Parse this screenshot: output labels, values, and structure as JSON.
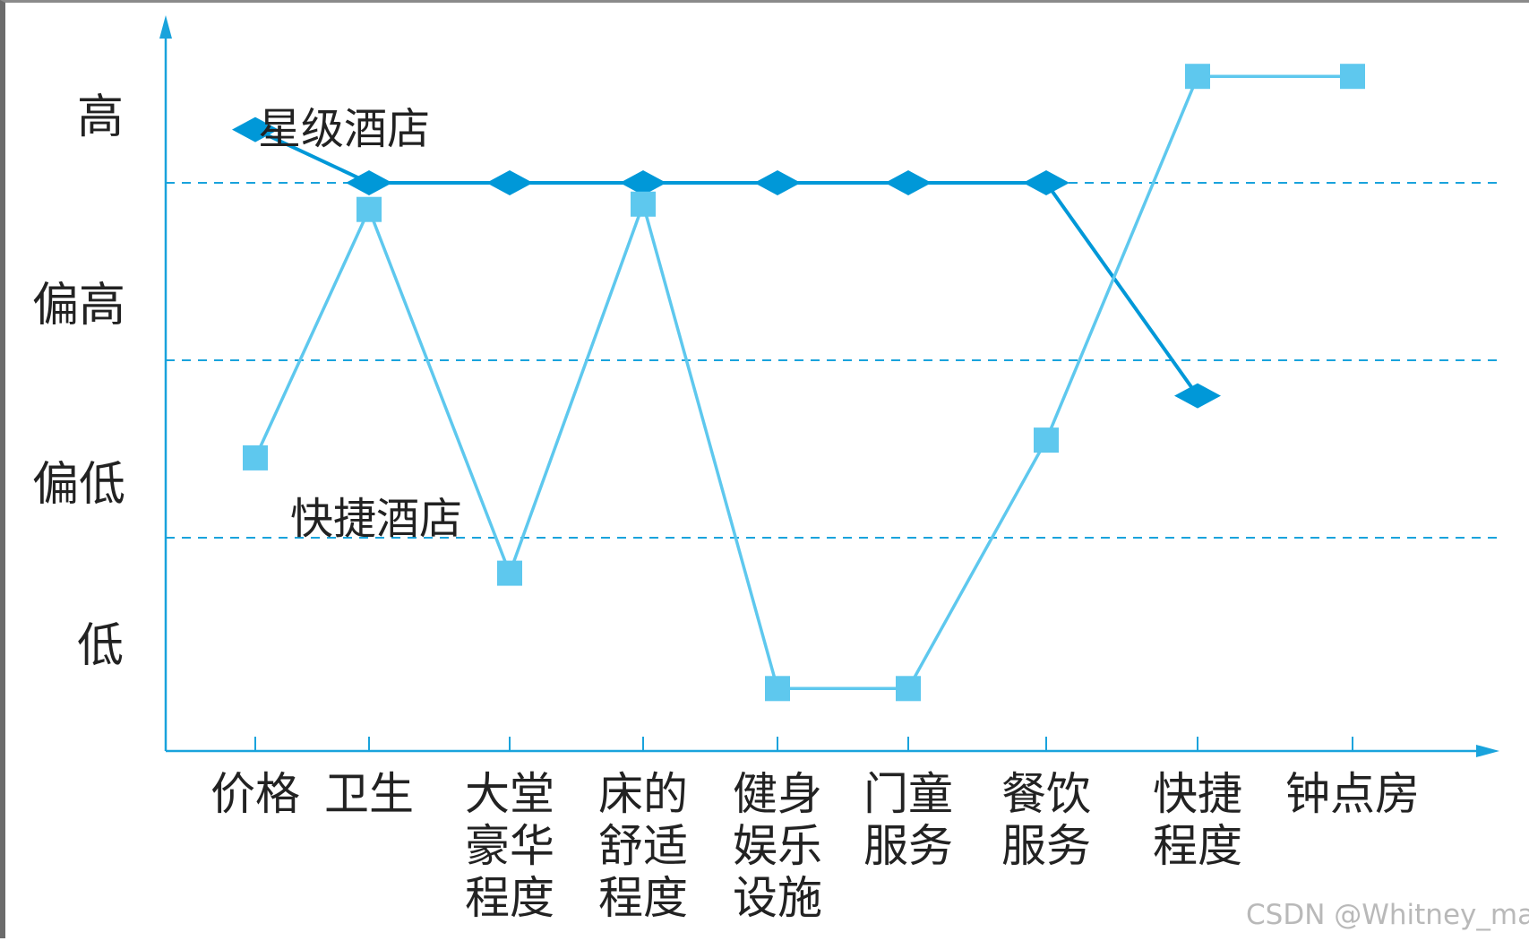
{
  "chart_data": {
    "type": "line",
    "title": "",
    "y_levels": [
      "低",
      "偏低",
      "偏高",
      "高"
    ],
    "ylim": [
      0,
      4
    ],
    "grid": "horizontal dashed lines at level boundaries",
    "categories": [
      [
        "价格"
      ],
      [
        "卫生"
      ],
      [
        "大堂",
        "豪华",
        "程度"
      ],
      [
        "床的",
        "舒适",
        "程度"
      ],
      [
        "健身",
        "娱乐",
        "设施"
      ],
      [
        "门童",
        "服务"
      ],
      [
        "餐饮",
        "服务"
      ],
      [
        "快捷",
        "程度"
      ],
      [
        "钟点房"
      ]
    ],
    "series": [
      {
        "name": "星级酒店",
        "marker": "diamond",
        "color": "#0098d8",
        "values": [
          3.3,
          3.0,
          3.0,
          3.0,
          3.0,
          3.0,
          3.0,
          1.8,
          null
        ]
      },
      {
        "name": "快捷酒店",
        "marker": "square",
        "color": "#5ec8ee",
        "values": [
          1.45,
          2.85,
          0.8,
          2.88,
          0.15,
          0.15,
          1.55,
          3.6,
          3.6
        ]
      }
    ]
  },
  "watermark": "CSDN @Whitney_mao",
  "colors": {
    "axis": "#19a3dc",
    "grid": "#19a3dc"
  }
}
